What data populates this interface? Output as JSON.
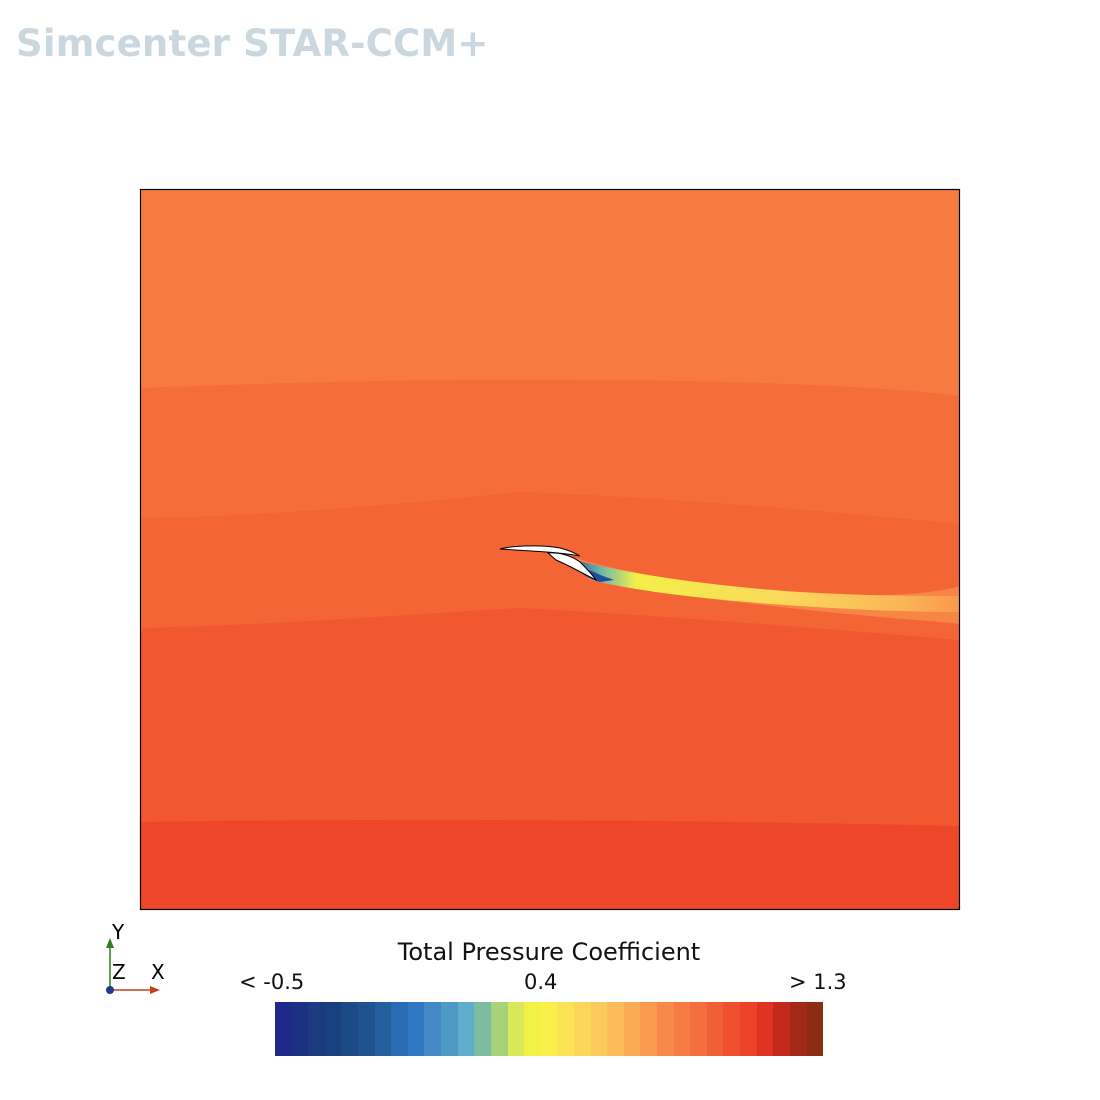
{
  "app": {
    "brand": "Simcenter STAR-CCM+"
  },
  "axes": {
    "y_label": "Y",
    "z_label": "Z",
    "x_label": "X",
    "colors": {
      "y": "#2e7d1e",
      "x": "#c0441a",
      "z": "#1f3a8a"
    }
  },
  "legend": {
    "title": "Total Pressure Coefficient",
    "min_label": "< -0.5",
    "mid_label": "0.4",
    "max_label": "> 1.3",
    "min_value": -0.5,
    "mid_value": 0.4,
    "max_value": 1.3,
    "colors": [
      "#1f2a88",
      "#1b3284",
      "#1b3a80",
      "#1a417f",
      "#1c4a84",
      "#1f5390",
      "#245f9d",
      "#2a6cb3",
      "#2f78c4",
      "#4489c3",
      "#4f99c6",
      "#5faccc",
      "#7cbda2",
      "#a7d27a",
      "#d8e85a",
      "#f2f244",
      "#fbf04a",
      "#fae355",
      "#fbd65a",
      "#fbc95c",
      "#fbbb59",
      "#fbab54",
      "#f99a4e",
      "#f8894a",
      "#f67c44",
      "#f46e3e",
      "#f15f37",
      "#ee5030",
      "#ec4228",
      "#e03322",
      "#c32a1c",
      "#a22915",
      "#8a2d13"
    ]
  },
  "field": {
    "bands": [
      {
        "color": "#f77b40"
      },
      {
        "color": "#f56e3a"
      },
      {
        "color": "#f46535"
      },
      {
        "color": "#f15830"
      },
      {
        "color": "#ee4628"
      }
    ],
    "outline_color": "#000000"
  }
}
